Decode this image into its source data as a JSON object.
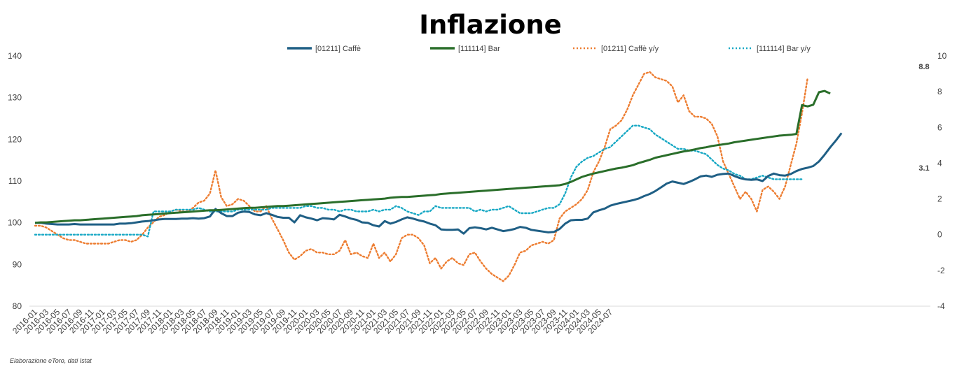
{
  "chart_data": {
    "type": "line",
    "title": "Inflazione",
    "credit": "Elaborazione eToro, dati Istat",
    "colors": {
      "caffe": "#1f5f85",
      "bar": "#2a6e2a",
      "caffe_yy": "#ed7d31",
      "bar_yy": "#17a8c4"
    },
    "x_tick_labels": [
      "2016-01",
      "2016-03",
      "2016-05",
      "2016-07",
      "2016-09",
      "2016-11",
      "2017-01",
      "2017-03",
      "2017-05",
      "2017-07",
      "2017-09",
      "2017-11",
      "2018-01",
      "2018-03",
      "2018-05",
      "2018-07",
      "2018-09",
      "2018-11",
      "2019-01",
      "2019-03",
      "2019-05",
      "2019-07",
      "2019-09",
      "2019-11",
      "2020-01",
      "2020-03",
      "2020-05",
      "2020-07",
      "2020-09",
      "2020-11",
      "2021-01",
      "2021-03",
      "2021-05",
      "2021-07",
      "2021-09",
      "2021-11",
      "2022-01",
      "2022-03",
      "2022-05",
      "2022-07",
      "2022-09",
      "2022-11",
      "2023-01",
      "2023-03",
      "2023-05",
      "2023-07",
      "2023-09",
      "2023-11",
      "2024-01",
      "2024-03",
      "2024-05",
      "2024-07"
    ],
    "y_left": {
      "ticks": [
        80,
        90,
        100,
        110,
        120,
        130,
        140
      ],
      "ylim": [
        80,
        140
      ]
    },
    "y_right": {
      "ticks": [
        -4,
        -2,
        0,
        2,
        4,
        6,
        8,
        10
      ],
      "ylim": [
        -4,
        10
      ]
    },
    "legend": [
      "[01211] Caffè",
      "[111114] Bar",
      "[01211] Caffè  y/y",
      "[111114] Bar  y/y"
    ],
    "end_labels": [
      "8.8",
      "3.1"
    ],
    "series": [
      {
        "name": "[01211] Caffè",
        "key": "caffe",
        "axis": "left",
        "style": "solid",
        "values": [
          100.0,
          100.0,
          99.8,
          99.7,
          99.6,
          99.6,
          99.6,
          99.7,
          99.6,
          99.6,
          99.6,
          99.6,
          99.6,
          99.6,
          99.6,
          99.8,
          99.8,
          99.9,
          100.1,
          100.3,
          100.4,
          100.6,
          100.8,
          100.9,
          100.9,
          100.9,
          101.0,
          101.0,
          101.1,
          101.0,
          101.1,
          101.5,
          103.3,
          102.3,
          101.6,
          101.6,
          102.4,
          102.7,
          102.6,
          102.0,
          101.8,
          102.3,
          101.9,
          101.4,
          101.2,
          101.2,
          100.1,
          101.8,
          101.3,
          101.0,
          100.6,
          101.1,
          101.0,
          100.8,
          101.9,
          101.5,
          101.0,
          100.7,
          100.1,
          100.0,
          99.4,
          99.1,
          100.4,
          99.8,
          100.2,
          100.8,
          101.3,
          101.0,
          100.6,
          100.3,
          99.8,
          99.4,
          98.4,
          98.3,
          98.3,
          98.4,
          97.4,
          98.7,
          98.9,
          98.7,
          98.4,
          98.8,
          98.4,
          98.0,
          98.2,
          98.5,
          99.0,
          98.8,
          98.3,
          98.1,
          97.9,
          97.7,
          97.8,
          98.5,
          99.8,
          100.6,
          100.7,
          100.7,
          101.0,
          102.5,
          103.0,
          103.4,
          104.1,
          104.5,
          104.8,
          105.1,
          105.4,
          105.8,
          106.4,
          106.9,
          107.6,
          108.5,
          109.4,
          109.9,
          109.6,
          109.3,
          109.8,
          110.4,
          111.1,
          111.3,
          111.0,
          111.5,
          111.7,
          111.8,
          111.2,
          110.7,
          110.4,
          110.3,
          110.4,
          110.0,
          111.2,
          111.8,
          111.4,
          111.3,
          111.7,
          112.4,
          112.9,
          113.2,
          113.6,
          114.7,
          116.3,
          118.1,
          119.7,
          121.5
        ]
      },
      {
        "name": "[111114] Bar",
        "key": "bar",
        "axis": "left",
        "style": "solid",
        "values": [
          100.0,
          100.1,
          100.1,
          100.2,
          100.3,
          100.4,
          100.5,
          100.6,
          100.6,
          100.7,
          100.8,
          100.9,
          101.0,
          101.1,
          101.2,
          101.3,
          101.4,
          101.5,
          101.6,
          101.8,
          101.9,
          102.0,
          102.1,
          102.2,
          102.3,
          102.4,
          102.5,
          102.6,
          102.7,
          102.8,
          102.9,
          103.0,
          103.0,
          103.1,
          103.2,
          103.3,
          103.4,
          103.5,
          103.6,
          103.6,
          103.7,
          103.8,
          103.9,
          104.0,
          104.0,
          104.1,
          104.2,
          104.3,
          104.4,
          104.5,
          104.6,
          104.7,
          104.8,
          104.9,
          105.0,
          105.1,
          105.2,
          105.3,
          105.4,
          105.5,
          105.6,
          105.7,
          105.8,
          106.0,
          106.1,
          106.2,
          106.2,
          106.3,
          106.4,
          106.5,
          106.6,
          106.7,
          106.9,
          107.0,
          107.1,
          107.2,
          107.3,
          107.4,
          107.5,
          107.6,
          107.7,
          107.8,
          107.9,
          108.0,
          108.1,
          108.2,
          108.3,
          108.4,
          108.5,
          108.6,
          108.7,
          108.8,
          108.9,
          109.0,
          109.3,
          109.8,
          110.4,
          111.0,
          111.4,
          111.8,
          112.1,
          112.4,
          112.7,
          113.0,
          113.2,
          113.5,
          113.8,
          114.3,
          114.7,
          115.1,
          115.6,
          115.9,
          116.2,
          116.5,
          116.8,
          117.1,
          117.3,
          117.6,
          117.9,
          118.1,
          118.4,
          118.6,
          118.8,
          119.0,
          119.3,
          119.5,
          119.7,
          119.9,
          120.1,
          120.3,
          120.5,
          120.7,
          120.9,
          121.0,
          121.1,
          121.3,
          128.2,
          127.9,
          128.3,
          131.3,
          131.6,
          131.0
        ]
      },
      {
        "name": "[01211] Caffè  y/y",
        "key": "caffe_yy",
        "axis": "right",
        "style": "dotted",
        "values": [
          0.5,
          0.5,
          0.4,
          0.2,
          0.0,
          -0.2,
          -0.3,
          -0.3,
          -0.4,
          -0.5,
          -0.5,
          -0.5,
          -0.5,
          -0.5,
          -0.4,
          -0.3,
          -0.3,
          -0.4,
          -0.3,
          0.0,
          0.4,
          0.7,
          1.0,
          1.1,
          1.3,
          1.4,
          1.3,
          1.3,
          1.5,
          1.8,
          1.9,
          2.3,
          3.6,
          2.1,
          1.6,
          1.7,
          2.0,
          1.9,
          1.6,
          1.3,
          1.3,
          1.6,
          0.9,
          0.3,
          -0.3,
          -1.0,
          -1.4,
          -1.2,
          -0.9,
          -0.8,
          -1.0,
          -1.0,
          -1.1,
          -1.1,
          -0.9,
          -0.3,
          -1.1,
          -1.0,
          -1.2,
          -1.3,
          -0.5,
          -1.3,
          -1.0,
          -1.5,
          -1.1,
          -0.2,
          0.0,
          0.0,
          -0.2,
          -0.6,
          -1.6,
          -1.3,
          -1.9,
          -1.5,
          -1.3,
          -1.6,
          -1.7,
          -1.1,
          -1.0,
          -1.5,
          -1.9,
          -2.2,
          -2.4,
          -2.6,
          -2.3,
          -1.7,
          -1.0,
          -0.9,
          -0.6,
          -0.5,
          -0.4,
          -0.5,
          -0.3,
          0.9,
          1.3,
          1.5,
          1.7,
          2.0,
          2.5,
          3.5,
          4.1,
          4.9,
          5.9,
          6.1,
          6.4,
          7.0,
          7.8,
          8.4,
          9.0,
          9.1,
          8.8,
          8.7,
          8.6,
          8.3,
          7.4,
          7.8,
          6.9,
          6.6,
          6.6,
          6.5,
          6.2,
          5.5,
          4.1,
          3.4,
          2.7,
          2.0,
          2.4,
          2.0,
          1.3,
          2.5,
          2.7,
          2.4,
          2.0,
          2.7,
          3.9,
          5.1,
          6.8,
          8.8
        ]
      },
      {
        "name": "[111114] Bar  y/y",
        "key": "bar_yy",
        "axis": "right",
        "style": "dotted",
        "values": [
          0.0,
          0.0,
          0.0,
          0.0,
          0.0,
          0.0,
          0.0,
          0.0,
          0.0,
          0.0,
          0.0,
          0.0,
          0.0,
          0.0,
          0.0,
          0.0,
          0.0,
          0.0,
          0.0,
          0.0,
          -0.1,
          1.3,
          1.3,
          1.3,
          1.3,
          1.4,
          1.4,
          1.4,
          1.4,
          1.5,
          1.4,
          1.3,
          1.3,
          1.3,
          1.3,
          1.3,
          1.4,
          1.4,
          1.4,
          1.4,
          1.4,
          1.4,
          1.5,
          1.5,
          1.5,
          1.5,
          1.5,
          1.5,
          1.6,
          1.6,
          1.5,
          1.5,
          1.4,
          1.4,
          1.3,
          1.4,
          1.4,
          1.3,
          1.3,
          1.3,
          1.4,
          1.3,
          1.4,
          1.4,
          1.6,
          1.5,
          1.3,
          1.2,
          1.1,
          1.3,
          1.3,
          1.6,
          1.5,
          1.5,
          1.5,
          1.5,
          1.5,
          1.5,
          1.3,
          1.4,
          1.3,
          1.4,
          1.4,
          1.5,
          1.6,
          1.4,
          1.2,
          1.2,
          1.2,
          1.3,
          1.4,
          1.5,
          1.5,
          1.7,
          2.3,
          3.2,
          3.8,
          4.1,
          4.3,
          4.4,
          4.6,
          4.8,
          4.9,
          5.2,
          5.5,
          5.8,
          6.1,
          6.1,
          6.0,
          5.9,
          5.6,
          5.4,
          5.2,
          5.0,
          4.8,
          4.8,
          4.7,
          4.7,
          4.6,
          4.5,
          4.2,
          3.9,
          3.7,
          3.6,
          3.4,
          3.3,
          3.1,
          3.1,
          3.2,
          3.3,
          3.2,
          3.1,
          3.1,
          3.1,
          3.1,
          3.1,
          3.1
        ]
      }
    ]
  }
}
